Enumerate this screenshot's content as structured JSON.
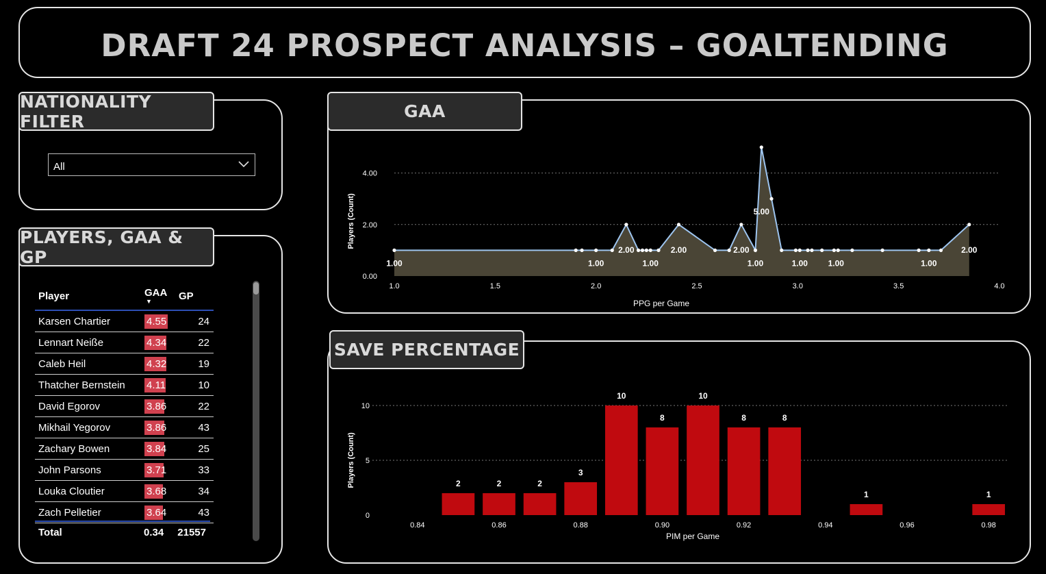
{
  "header": {
    "title": "DRAFT 24 PROSPECT ANALYSIS –  GOALTENDING"
  },
  "nationality_filter": {
    "tab_label": "NATIONALITY FILTER",
    "selected": "All"
  },
  "players_table": {
    "tab_label": "PLAYERS, GAA & GP",
    "columns": [
      "Player",
      "GAA",
      "GP"
    ],
    "rows": [
      {
        "player": "Karsen Chartier",
        "gaa": "4.55",
        "gp": "24"
      },
      {
        "player": "Lennart Neiße",
        "gaa": "4.34",
        "gp": "22"
      },
      {
        "player": "Caleb Heil",
        "gaa": "4.32",
        "gp": "19"
      },
      {
        "player": "Thatcher Bernstein",
        "gaa": "4.11",
        "gp": "10"
      },
      {
        "player": "David Egorov",
        "gaa": "3.86",
        "gp": "22"
      },
      {
        "player": "Mikhail Yegorov",
        "gaa": "3.86",
        "gp": "43"
      },
      {
        "player": "Zachary Bowen",
        "gaa": "3.84",
        "gp": "25"
      },
      {
        "player": "John Parsons",
        "gaa": "3.71",
        "gp": "33"
      },
      {
        "player": "Louka Cloutier",
        "gaa": "3.68",
        "gp": "34"
      },
      {
        "player": "Zach Pelletier",
        "gaa": "3.64",
        "gp": "43"
      }
    ],
    "total": {
      "label": "Total",
      "gaa": "0.34",
      "gp": "21557"
    },
    "bar_color": "#d0414f"
  },
  "chart_data": [
    {
      "type": "area",
      "tab_label": "GAA",
      "xlabel": "PPG per Game",
      "ylabel": "Players (Count)",
      "xlim": [
        1.0,
        4.0
      ],
      "ylim": [
        0,
        5
      ],
      "x_ticks": [
        "1.0",
        "1.5",
        "2.0",
        "2.5",
        "3.0",
        "3.5",
        "4.0"
      ],
      "y_ticks": [
        "0.00",
        "2.00",
        "4.00"
      ],
      "line_color": "#9ec5f0",
      "fill_color": "#4a4536",
      "points": [
        [
          1.0,
          1
        ],
        [
          1.9,
          1
        ],
        [
          1.93,
          1
        ],
        [
          2.0,
          1
        ],
        [
          2.08,
          1
        ],
        [
          2.15,
          2
        ],
        [
          2.21,
          1
        ],
        [
          2.23,
          1
        ],
        [
          2.25,
          1
        ],
        [
          2.27,
          1
        ],
        [
          2.31,
          1
        ],
        [
          2.41,
          2
        ],
        [
          2.59,
          1
        ],
        [
          2.66,
          1
        ],
        [
          2.72,
          2
        ],
        [
          2.79,
          1
        ],
        [
          2.82,
          5
        ],
        [
          2.87,
          3
        ],
        [
          2.92,
          1
        ],
        [
          2.99,
          1
        ],
        [
          3.01,
          1
        ],
        [
          3.05,
          1
        ],
        [
          3.07,
          1
        ],
        [
          3.12,
          1
        ],
        [
          3.18,
          1
        ],
        [
          3.2,
          1
        ],
        [
          3.27,
          1
        ],
        [
          3.42,
          1
        ],
        [
          3.6,
          1
        ],
        [
          3.65,
          1
        ],
        [
          3.71,
          1
        ],
        [
          3.85,
          2
        ]
      ],
      "data_labels": [
        {
          "x": 1.0,
          "y": 1,
          "text": "1.00"
        },
        {
          "x": 2.0,
          "y": 1,
          "text": "1.00"
        },
        {
          "x": 2.15,
          "y": 2,
          "text": "2.00"
        },
        {
          "x": 2.27,
          "y": 1,
          "text": "1.00"
        },
        {
          "x": 2.41,
          "y": 2,
          "text": "2.00"
        },
        {
          "x": 2.72,
          "y": 2,
          "text": "2.00"
        },
        {
          "x": 2.79,
          "y": 1,
          "text": "1.00"
        },
        {
          "x": 2.82,
          "y": 5,
          "text": "5.00"
        },
        {
          "x": 3.01,
          "y": 1,
          "text": "1.00"
        },
        {
          "x": 3.19,
          "y": 1,
          "text": "1.00"
        },
        {
          "x": 3.65,
          "y": 1,
          "text": "1.00"
        },
        {
          "x": 3.85,
          "y": 2,
          "text": "2.00"
        }
      ]
    },
    {
      "type": "bar",
      "tab_label": "SAVE PERCENTAGE",
      "xlabel": "PIM per Game",
      "ylabel": "Players (Count)",
      "xlim": [
        0.835,
        0.985
      ],
      "ylim": [
        0,
        10
      ],
      "x_ticks": [
        "0.84",
        "0.86",
        "0.88",
        "0.90",
        "0.92",
        "0.94",
        "0.96",
        "0.98"
      ],
      "y_ticks": [
        "0",
        "5",
        "10"
      ],
      "bar_color": "#c00a0f",
      "bars": [
        {
          "x": 0.85,
          "value": 2,
          "label": "2"
        },
        {
          "x": 0.86,
          "value": 2,
          "label": "2"
        },
        {
          "x": 0.87,
          "value": 2,
          "label": "2"
        },
        {
          "x": 0.88,
          "value": 3,
          "label": "3"
        },
        {
          "x": 0.89,
          "value": 10,
          "label": "10"
        },
        {
          "x": 0.9,
          "value": 8,
          "label": "8"
        },
        {
          "x": 0.91,
          "value": 10,
          "label": "10"
        },
        {
          "x": 0.92,
          "value": 8,
          "label": "8"
        },
        {
          "x": 0.93,
          "value": 8,
          "label": "8"
        },
        {
          "x": 0.95,
          "value": 1,
          "label": "1"
        },
        {
          "x": 0.98,
          "value": 1,
          "label": "1"
        }
      ]
    }
  ]
}
